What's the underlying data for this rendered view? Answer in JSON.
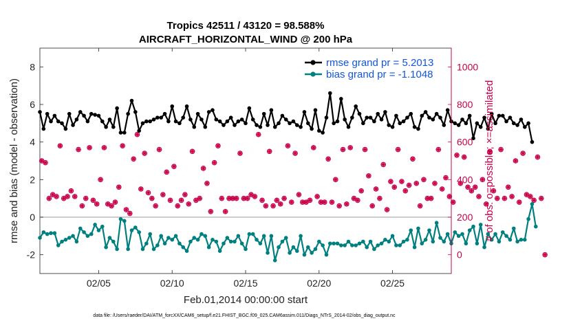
{
  "chart_data": {
    "type": "line",
    "title_line1": "Tropics 42511 / 43120 = 98.588%",
    "title_line2": "AIRCRAFT_HORIZONTAL_WIND @ 200 hPa",
    "xlabel": "Feb.01,2014 00:00:00 start",
    "ylabel": "rmse and bias (model - observation)",
    "y2label": "# of obs: o=possible; ×=assimilated",
    "footer": "data file: /Users/raeder/DAI/ATM_forcXX/CAM6_setup/f.e21.FHIST_BGC.f09_025.CAM6assim.011/Diags_NTrS_2014-02/obs_diag_output.nc",
    "xlim": [
      1.0,
      29.0
    ],
    "ylim": [
      -3,
      9
    ],
    "y2lim": [
      -100,
      1100
    ],
    "x_ticks": [
      5,
      10,
      15,
      20,
      25
    ],
    "x_tick_labels": [
      "02/05",
      "02/10",
      "02/15",
      "02/20",
      "02/25"
    ],
    "y_ticks": [
      -2,
      0,
      2,
      4,
      6,
      8
    ],
    "y_tick_labels": [
      "-2",
      "0",
      "2",
      "4",
      "6",
      "8"
    ],
    "y2_ticks": [
      0,
      200,
      400,
      600,
      800,
      1000
    ],
    "y2_tick_labels": [
      "0",
      "200",
      "400",
      "600",
      "800",
      "1000"
    ],
    "zero_line": 0,
    "grid": false,
    "legend_position": "top-right",
    "colors": {
      "rmse": "#000000",
      "bias": "#007f7f",
      "obs": "#c8004a",
      "legend_text": "#1155dd"
    },
    "series": [
      {
        "name": "rmse grand pr = 5.2013",
        "color": "#000000",
        "x_start": 1.0,
        "x_step": 0.25,
        "values": [
          5.6,
          4.7,
          5.5,
          5.1,
          5.4,
          5.1,
          5.0,
          4.7,
          5.5,
          4.9,
          5.2,
          5.6,
          5.4,
          5.1,
          5.5,
          5.45,
          5.4,
          5.1,
          4.8,
          5.2,
          4.8,
          5.8,
          4.5,
          4.5,
          5.5,
          6.2,
          5.6,
          4.6,
          5.0,
          5.1,
          5.1,
          5.2,
          5.3,
          5.3,
          5.5,
          5.1,
          5.9,
          5.1,
          5.0,
          5.3,
          5.9,
          5.2,
          4.8,
          5.5,
          5.2,
          4.8,
          5.6,
          5.7,
          5.2,
          5.1,
          4.9,
          5.1,
          5.3,
          4.9,
          5.1,
          5.2,
          5.0,
          5.8,
          5.2,
          4.9,
          4.8,
          5.5,
          4.9,
          5.7,
          4.8,
          5.0,
          5.4,
          5.2,
          5.0,
          5.1,
          4.9,
          4.8,
          5.6,
          5.0,
          4.7,
          5.7,
          4.6,
          4.5,
          5.3,
          6.6,
          5.0,
          5.1,
          6.3,
          5.2,
          4.8,
          5.3,
          5.9,
          5.5,
          5.0,
          5.3,
          5.3,
          5.1,
          5.5,
          5.2,
          5.6,
          4.9,
          4.8,
          5.4,
          5.0,
          5.1,
          5.3,
          5.5,
          4.8,
          4.7,
          5.4,
          5.6,
          5.3,
          5.2,
          5.5,
          5.3,
          4.9,
          5.7,
          5.1,
          5.0,
          4.9,
          5.2,
          5.0,
          5.4,
          4.2,
          5.0,
          4.8,
          5.3,
          4.7,
          5.5,
          5.0,
          5.4,
          5.4,
          5.1,
          5.3,
          5.0,
          4.9,
          5.2,
          4.8,
          5.0,
          4.0
        ]
      },
      {
        "name": "bias grand pr = -1.1048",
        "color": "#007f7f",
        "x_start": 1.0,
        "x_step": 0.25,
        "values": [
          -1.1,
          -0.8,
          -0.9,
          -0.85,
          -0.85,
          -1.5,
          -1.3,
          -1.2,
          -1.1,
          -1.0,
          -1.3,
          -0.6,
          -0.8,
          -1.0,
          -0.9,
          -0.4,
          -0.7,
          -0.5,
          -1.6,
          -1.1,
          -1.3,
          -1.7,
          -0.1,
          -0.2,
          -1.7,
          -0.7,
          -0.55,
          -0.8,
          -1.7,
          -1.4,
          -0.9,
          -1.7,
          -1.5,
          -1.0,
          -1.4,
          -1.1,
          -1.2,
          -1.0,
          -1.4,
          -1.6,
          -1.8,
          -1.3,
          -1.1,
          -1.2,
          -0.9,
          -1.0,
          -1.6,
          -1.2,
          -1.3,
          -1.8,
          -1.4,
          -1.1,
          -1.3,
          -1.3,
          -1.0,
          -1.4,
          -1.7,
          -0.9,
          -0.9,
          -1.2,
          -1.4,
          -1.0,
          -1.9,
          -1.0,
          -2.3,
          -1.6,
          -1.3,
          -1.1,
          -1.9,
          -1.6,
          -1.8,
          -1.0,
          -2.0,
          -1.6,
          -1.9,
          -1.7,
          -1.3,
          -1.5,
          -2.0,
          -1.4,
          -1.4,
          -1.4,
          -1.5,
          -1.5,
          -1.3,
          -1.5,
          -1.5,
          -1.4,
          -1.3,
          -1.6,
          -1.3,
          -1.7,
          -1.5,
          -1.4,
          -1.2,
          -1.3,
          -1.0,
          -1.5,
          -1.5,
          -1.3,
          -1.2,
          -0.7,
          -1.6,
          -0.6,
          -1.4,
          -1.2,
          -0.7,
          -1.3,
          -0.3,
          -1.1,
          -1.3,
          -0.9,
          -1.4,
          -0.8,
          -1.0,
          -0.9,
          -1.4,
          -0.7,
          -0.5,
          -1.4,
          -0.4,
          -1.6,
          -0.9,
          -1.2,
          -0.9,
          -1.3,
          -0.8,
          -1.0,
          -1.2,
          -0.6,
          -1.3,
          -1.2,
          -1.2,
          -0.1,
          0.7,
          -0.5
        ]
      },
      {
        "name": "possible",
        "color": "#c8004a",
        "marker": "circle",
        "x_start": 1.125,
        "x_step": 0.25,
        "values": [
          500,
          490,
          300,
          320,
          310,
          580,
          300,
          310,
          340,
          310,
          560,
          260,
          300,
          570,
          290,
          270,
          400,
          570,
          270,
          260,
          280,
          360,
          580,
          240,
          220,
          510,
          640,
          350,
          540,
          330,
          300,
          260,
          560,
          320,
          440,
          290,
          470,
          260,
          290,
          320,
          270,
          550,
          290,
          300,
          460,
          380,
          230,
          490,
          580,
          300,
          230,
          300,
          300,
          300,
          540,
          300,
          300,
          320,
          310,
          640,
          290,
          260,
          550,
          260,
          290,
          270,
          300,
          580,
          280,
          540,
          320,
          280,
          280,
          290,
          570,
          310,
          280,
          280,
          510,
          280,
          400,
          260,
          560,
          270,
          570,
          300,
          290,
          340,
          560,
          420,
          260,
          350,
          300,
          480,
          240,
          390,
          360,
          560,
          390,
          340,
          370,
          510,
          380,
          260,
          400,
          300,
          300,
          380,
          560,
          350,
          410,
          310,
          280,
          530,
          380,
          520,
          360,
          340,
          360,
          310,
          400,
          270,
          550,
          340,
          300,
          560,
          300,
          360,
          310,
          500,
          280,
          540,
          320,
          310,
          290,
          520,
          300,
          0
        ]
      },
      {
        "name": "assimilated",
        "color": "#c8004a",
        "marker": "asterisk",
        "x_start": 1.125,
        "x_step": 0.25,
        "values": [
          500,
          490,
          300,
          320,
          310,
          580,
          300,
          310,
          340,
          310,
          560,
          260,
          300,
          570,
          290,
          270,
          400,
          570,
          270,
          260,
          280,
          360,
          580,
          240,
          220,
          510,
          640,
          350,
          540,
          330,
          300,
          260,
          560,
          320,
          440,
          290,
          470,
          260,
          290,
          320,
          270,
          550,
          290,
          300,
          460,
          380,
          230,
          490,
          580,
          300,
          230,
          300,
          300,
          300,
          540,
          300,
          300,
          320,
          310,
          640,
          290,
          260,
          550,
          260,
          290,
          270,
          300,
          580,
          280,
          540,
          320,
          280,
          280,
          290,
          570,
          310,
          280,
          280,
          510,
          280,
          400,
          260,
          560,
          270,
          570,
          300,
          290,
          340,
          560,
          420,
          260,
          350,
          300,
          480,
          240,
          390,
          360,
          560,
          390,
          340,
          370,
          510,
          380,
          260,
          400,
          300,
          300,
          380,
          560,
          350,
          410,
          310,
          280,
          530,
          380,
          520,
          360,
          340,
          360,
          310,
          400,
          270,
          550,
          340,
          300,
          560,
          300,
          360,
          310,
          500,
          280,
          540,
          320,
          310,
          290,
          520,
          300,
          0
        ]
      }
    ]
  }
}
